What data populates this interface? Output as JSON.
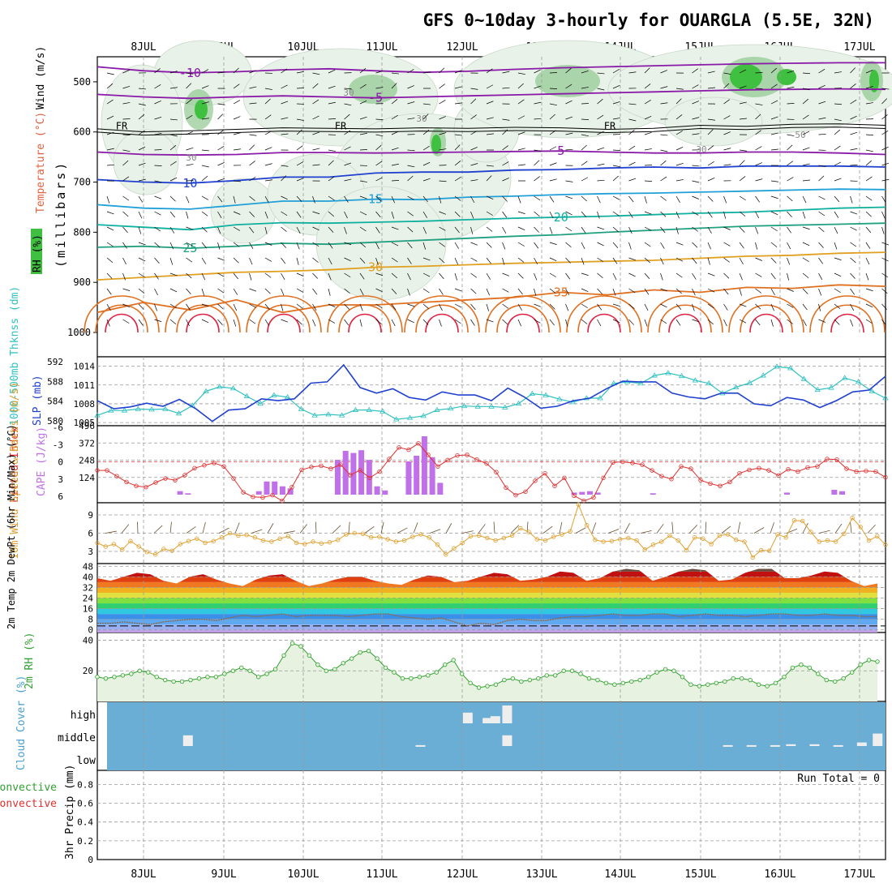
{
  "title": "GFS 0~10day 3-hourly for OUARGLA (5.5E, 32N)",
  "colors": {
    "temp_cold": "#8a1aa8",
    "temp_blue": "#2040d0",
    "temp_cyan": "#20a0d8",
    "temp_teal": "#10b0a0",
    "temp_green": "#20a080",
    "temp_orange": "#e0a020",
    "temp_dorange": "#e07020",
    "temp_red": "#e02040",
    "rh_green": "#40c040",
    "cloud_blue": "#6aaed6",
    "slp_blue": "#2040d0",
    "thick_cyan": "#30c0c0",
    "cape_purple": "#c070e8",
    "li_red": "#e03030",
    "wind_orange": "#e0a030",
    "rh2m_green": "#30a030"
  },
  "chart_data": [
    {
      "panel": "upper-air",
      "type": "contour",
      "xlabels": [
        "8JUL",
        "9JUL",
        "10JUL",
        "11JUL",
        "12JUL",
        "13JUL",
        "14JUL",
        "15JUL",
        "16JUL",
        "17JUL"
      ],
      "ylabel": "(millibars)",
      "ylabel_rh": "RH (%)",
      "ylabel_temp": "Temperature (°C)",
      "ylabel_wind": "Wind (m/s)",
      "yticks": [
        500,
        600,
        700,
        800,
        900,
        1000
      ],
      "ylim": [
        450,
        1000
      ],
      "freezing_label": "FR",
      "isotherms": [
        {
          "label": "-10",
          "value": -10,
          "pressure": [
            470,
            478,
            482,
            480,
            476,
            474,
            478,
            481,
            479,
            475,
            472,
            470,
            468,
            466,
            464,
            463,
            462,
            462
          ]
        },
        {
          "label": "-5",
          "value": -5,
          "pressure": [
            525,
            530,
            533,
            530,
            528,
            530,
            532,
            530,
            528,
            526,
            524,
            522,
            520,
            518,
            516,
            515,
            514,
            515
          ]
        },
        {
          "label": "5",
          "value": 5,
          "pressure": [
            640,
            645,
            646,
            645,
            641,
            641,
            642,
            641,
            640,
            639,
            638,
            640,
            642,
            642,
            640,
            640,
            642,
            645
          ]
        },
        {
          "label": "10",
          "value": 10,
          "pressure": [
            695,
            700,
            702,
            697,
            690,
            690,
            682,
            680,
            680,
            676,
            675,
            672,
            670,
            672,
            668,
            668,
            668,
            670
          ]
        },
        {
          "label": "15",
          "value": 15,
          "pressure": [
            745,
            752,
            754,
            746,
            738,
            738,
            734,
            735,
            730,
            728,
            725,
            723,
            722,
            720,
            718,
            716,
            714,
            715
          ]
        },
        {
          "label": "20",
          "value": 20,
          "pressure": [
            785,
            790,
            795,
            785,
            781,
            782,
            780,
            778,
            775,
            772,
            770,
            768,
            765,
            762,
            760,
            756,
            752,
            750
          ]
        },
        {
          "label": "25",
          "value": 25,
          "pressure": [
            830,
            828,
            832,
            828,
            822,
            824,
            820,
            816,
            812,
            808,
            805,
            800,
            796,
            792,
            788,
            786,
            784,
            782
          ]
        },
        {
          "label": "30",
          "value": 30,
          "pressure": [
            895,
            890,
            885,
            880,
            878,
            875,
            870,
            868,
            865,
            862,
            860,
            858,
            856,
            852,
            848,
            846,
            842,
            840
          ]
        },
        {
          "label": "35",
          "value": 35,
          "pressure": [
            960,
            940,
            955,
            935,
            960,
            945,
            945,
            940,
            935,
            930,
            920,
            925,
            915,
            920,
            910,
            912,
            905,
            908
          ]
        }
      ],
      "rh_labels": [
        "30",
        "30",
        "30",
        "50",
        "30"
      ]
    },
    {
      "panel": "slp-thickness",
      "type": "line",
      "ylabel_left": "1000-500mb Thknss (dm)",
      "ylabel_right": "SLP (mb)",
      "left_ticks": [
        "580",
        "584",
        "588",
        "592"
      ],
      "right_ticks": [
        "1005",
        "1008",
        "1011",
        "1014"
      ],
      "ylim_slp": [
        1004.5,
        1015.5
      ],
      "ylim_thk": [
        579,
        593
      ],
      "series": [
        {
          "name": "SLP (mb)",
          "values": [
            1008.5,
            1007.2,
            1007.5,
            1008.1,
            1007.6,
            1008.7,
            1007.2,
            1005.2,
            1007.0,
            1007.2,
            1008.8,
            1008.5,
            1008.8,
            1011.3,
            1011.5,
            1014.2,
            1010.6,
            1009.7,
            1010.4,
            1009.0,
            1008.6,
            1009.9,
            1009.4,
            1009.4,
            1008.5,
            1010.5,
            1009.1,
            1007.3,
            1007.6,
            1008.5,
            1008.9,
            1010.4,
            1011.6,
            1011.5,
            1011.5,
            1009.7,
            1009.1,
            1008.8,
            1009.7,
            1009.7,
            1008.0,
            1007.7,
            1009.0,
            1008.6,
            1007.4,
            1008.5,
            1009.9,
            1010.2,
            1012.4
          ]
        },
        {
          "name": "Thickness (dm)",
          "values": [
            581.1,
            582.1,
            582.1,
            582.4,
            582.3,
            582.4,
            581.5,
            583.1,
            586.0,
            586.9,
            586.6,
            585.0,
            583.5,
            585.2,
            584.8,
            582.4,
            581.1,
            581.3,
            581.1,
            582.2,
            582.2,
            581.9,
            580.3,
            580.6,
            581.0,
            582.2,
            582.5,
            583.0,
            582.9,
            582.9,
            582.7,
            583.5,
            585.5,
            585.2,
            584.4,
            583.8,
            584.6,
            584.6,
            587.6,
            587.9,
            587.6,
            589.2,
            589.7,
            589.1,
            588.2,
            587.6,
            585.6,
            586.8,
            587.7,
            589.2,
            591.0,
            590.7,
            588.5,
            586.3,
            586.7,
            588.7,
            587.9,
            586.0,
            584.6
          ]
        }
      ]
    },
    {
      "panel": "cape-li",
      "type": "bar+line",
      "ylabel_left": "Lifted Index",
      "ylabel_right": "CAPE (J/kg)",
      "li_ticks": [
        "-6",
        "-3",
        "0",
        "3",
        "6"
      ],
      "cape_ticks": [
        "124",
        "248",
        "372",
        "496"
      ],
      "cape_values": [
        0,
        0,
        0,
        0,
        0,
        0,
        0,
        0,
        0,
        0,
        0,
        0,
        0,
        0,
        0,
        0,
        0,
        0,
        0,
        0,
        0,
        0,
        0,
        0,
        0,
        0,
        0,
        0,
        0,
        0,
        0,
        0,
        0,
        0,
        0,
        0,
        0,
        0,
        0,
        0,
        0,
        0,
        0,
        0,
        0,
        0,
        0,
        0,
        0,
        0,
        0,
        0,
        0,
        0,
        0,
        0,
        0,
        0,
        0,
        0,
        0,
        0,
        0,
        0,
        0,
        0,
        0,
        0,
        0,
        0,
        0,
        0,
        0,
        0,
        0,
        0,
        0,
        0
      ],
      "cape_bars": [
        {
          "t": 0.105,
          "v": 25
        },
        {
          "t": 0.115,
          "v": 10
        },
        {
          "t": 0.205,
          "v": 25
        },
        {
          "t": 0.215,
          "v": 95
        },
        {
          "t": 0.225,
          "v": 95
        },
        {
          "t": 0.235,
          "v": 60
        },
        {
          "t": 0.245,
          "v": 45
        },
        {
          "t": 0.305,
          "v": 250
        },
        {
          "t": 0.315,
          "v": 315
        },
        {
          "t": 0.325,
          "v": 300
        },
        {
          "t": 0.335,
          "v": 320
        },
        {
          "t": 0.345,
          "v": 250
        },
        {
          "t": 0.355,
          "v": 60
        },
        {
          "t": 0.365,
          "v": 30
        },
        {
          "t": 0.395,
          "v": 240
        },
        {
          "t": 0.405,
          "v": 280
        },
        {
          "t": 0.415,
          "v": 420
        },
        {
          "t": 0.425,
          "v": 270
        },
        {
          "t": 0.435,
          "v": 85
        },
        {
          "t": 0.605,
          "v": 15
        },
        {
          "t": 0.615,
          "v": 20
        },
        {
          "t": 0.625,
          "v": 25
        },
        {
          "t": 0.635,
          "v": 15
        },
        {
          "t": 0.705,
          "v": 10
        },
        {
          "t": 0.875,
          "v": 15
        },
        {
          "t": 0.935,
          "v": 35
        },
        {
          "t": 0.945,
          "v": 25
        }
      ],
      "li_values": [
        1.5,
        1.5,
        2.5,
        3.5,
        4.2,
        4.4,
        3.6,
        2.9,
        3.2,
        2.3,
        1.1,
        0.6,
        0.2,
        0.8,
        2.9,
        5.3,
        6.1,
        6.2,
        5.8,
        6.8,
        4.4,
        1.4,
        0.9,
        0.7,
        1.2,
        0.5,
        2.3,
        1.5,
        2.8,
        1.7,
        -0.5,
        -2.5,
        -2.1,
        -3.2,
        -1.2,
        0.8,
        -0.3,
        -1.1,
        -1.2,
        -0.4,
        0.3,
        1.8,
        4.5,
        5.8,
        5.2,
        3.3,
        2.0,
        4.2,
        2.8,
        5.9,
        6.8,
        6.2,
        2.8,
        0.1,
        0.0,
        0.2,
        0.5,
        1.5,
        2.5,
        3.0,
        0.8,
        1.2,
        3.2,
        3.8,
        4.2,
        3.5,
        2.0,
        1.4,
        1.1,
        1.5,
        2.4,
        1.3,
        1.7,
        1.0,
        0.8,
        -0.5,
        -0.4,
        1.2,
        1.7,
        1.6,
        1.7,
        2.7
      ]
    },
    {
      "panel": "wind10m",
      "type": "line",
      "ylabel": "10m Wind Speed & Barbs (m/s)",
      "yticks": [
        "3",
        "6",
        "9"
      ],
      "ylim": [
        1,
        11
      ],
      "values": [
        4.4,
        3.8,
        4.2,
        3.3,
        4.7,
        3.8,
        2.9,
        2.5,
        3.4,
        3.1,
        4.2,
        4.7,
        5.1,
        4.4,
        4.7,
        5.3,
        6.0,
        5.6,
        5.7,
        5.3,
        4.8,
        4.6,
        5.1,
        5.5,
        4.4,
        4.2,
        4.6,
        4.3,
        4.5,
        4.9,
        5.8,
        6.0,
        5.9,
        5.3,
        5.4,
        5.0,
        4.6,
        4.8,
        5.4,
        5.8,
        5.3,
        4.1,
        2.5,
        3.5,
        4.4,
        5.5,
        5.6,
        5.2,
        4.8,
        5.2,
        5.6,
        6.8,
        6.2,
        5.0,
        4.8,
        5.4,
        5.8,
        6.3,
        10.7,
        7.3,
        4.9,
        4.6,
        4.7,
        5.0,
        5.2,
        4.8,
        3.3,
        4.1,
        4.6,
        5.6,
        4.8,
        3.2,
        5.3,
        5.1,
        4.2,
        5.6,
        5.8,
        4.9,
        4.6,
        2.0,
        3.2,
        3.1,
        5.8,
        5.3,
        8.1,
        8.0,
        6.2,
        4.6,
        4.8,
        4.6,
        5.9,
        8.5,
        7.0,
        4.8,
        5.5,
        4.1
      ]
    },
    {
      "panel": "temp2m",
      "type": "area",
      "ylabel": "2m Temp 2m DewPt (6hr Min/Max) (°C)",
      "yticks": [
        "0",
        "8",
        "16",
        "24",
        "32",
        "40",
        "48"
      ],
      "ylim": [
        -2,
        50
      ],
      "temp_values": [
        39,
        37,
        40,
        43,
        42,
        37,
        35,
        40,
        42,
        38,
        35,
        33,
        38,
        41,
        42,
        37,
        33,
        35,
        38,
        40,
        40,
        37,
        35,
        34,
        38,
        41,
        40,
        36,
        37,
        40,
        43,
        42,
        37,
        38,
        40,
        44,
        43,
        37,
        39,
        44,
        46,
        45,
        37,
        40,
        44,
        46,
        45,
        37,
        38,
        43,
        46,
        46,
        39,
        39,
        41,
        44,
        43,
        37,
        33,
        35
      ],
      "dew_values": [
        5,
        5,
        6,
        5,
        4,
        6,
        7,
        8,
        8,
        7,
        9,
        11,
        10,
        11,
        12,
        10,
        11,
        11,
        11,
        10,
        11,
        12,
        12,
        10,
        9,
        8,
        9,
        6,
        3,
        5,
        4,
        7,
        8,
        7,
        7,
        9,
        10,
        10,
        11,
        12,
        11,
        11,
        12,
        12,
        10,
        11,
        12,
        11,
        11,
        10,
        11,
        12,
        12,
        11,
        11,
        12,
        11,
        11,
        10,
        10
      ],
      "freeze_dash": 3
    },
    {
      "panel": "rh2m",
      "type": "area",
      "ylabel": "2m RH (%)",
      "yticks": [
        "20",
        "40"
      ],
      "ylim": [
        0,
        45
      ],
      "values": [
        16,
        15,
        16,
        17,
        18,
        20,
        19,
        16,
        14,
        13,
        13,
        14,
        15,
        16,
        16,
        18,
        20,
        22,
        20,
        16,
        18,
        21,
        30,
        38,
        36,
        30,
        24,
        20,
        21,
        25,
        28,
        32,
        33,
        28,
        22,
        19,
        15,
        15,
        16,
        17,
        19,
        24,
        27,
        18,
        12,
        9,
        10,
        11,
        14,
        15,
        13,
        14,
        15,
        17,
        17,
        20,
        20,
        18,
        15,
        14,
        12,
        11,
        12,
        13,
        14,
        16,
        19,
        21,
        20,
        16,
        11,
        10,
        11,
        12,
        13,
        15,
        15,
        14,
        11,
        10,
        12,
        16,
        22,
        24,
        22,
        18,
        14,
        13,
        15,
        19,
        24,
        27,
        26
      ]
    },
    {
      "panel": "cloud",
      "type": "bar",
      "ylabel": "Cloud Cover (%)",
      "levels": [
        "high",
        "middle",
        "low"
      ],
      "high_bars": [
        {
          "t": 0.47,
          "v": 60
        },
        {
          "t": 0.495,
          "v": 30
        },
        {
          "t": 0.505,
          "v": 40
        },
        {
          "t": 0.52,
          "v": 100
        }
      ],
      "middle_bars": [
        {
          "t": 0.115,
          "v": 60
        },
        {
          "t": 0.41,
          "v": 5
        },
        {
          "t": 0.52,
          "v": 60
        },
        {
          "t": 0.8,
          "v": 5
        },
        {
          "t": 0.83,
          "v": 5
        },
        {
          "t": 0.86,
          "v": 5
        },
        {
          "t": 0.88,
          "v": 10
        },
        {
          "t": 0.91,
          "v": 10
        },
        {
          "t": 0.94,
          "v": 5
        },
        {
          "t": 0.97,
          "v": 20
        },
        {
          "t": 0.99,
          "v": 70
        }
      ]
    },
    {
      "panel": "precip",
      "type": "bar",
      "ylabel_left": "Total / Rain Convective",
      "ylabel": "3hr Precip (mm)",
      "yticks": [
        "0",
        "0.2",
        "0.4",
        "0.6",
        "0.8"
      ],
      "ylim": [
        0,
        0.95
      ],
      "run_total": "Run Total = 0",
      "values": []
    }
  ]
}
